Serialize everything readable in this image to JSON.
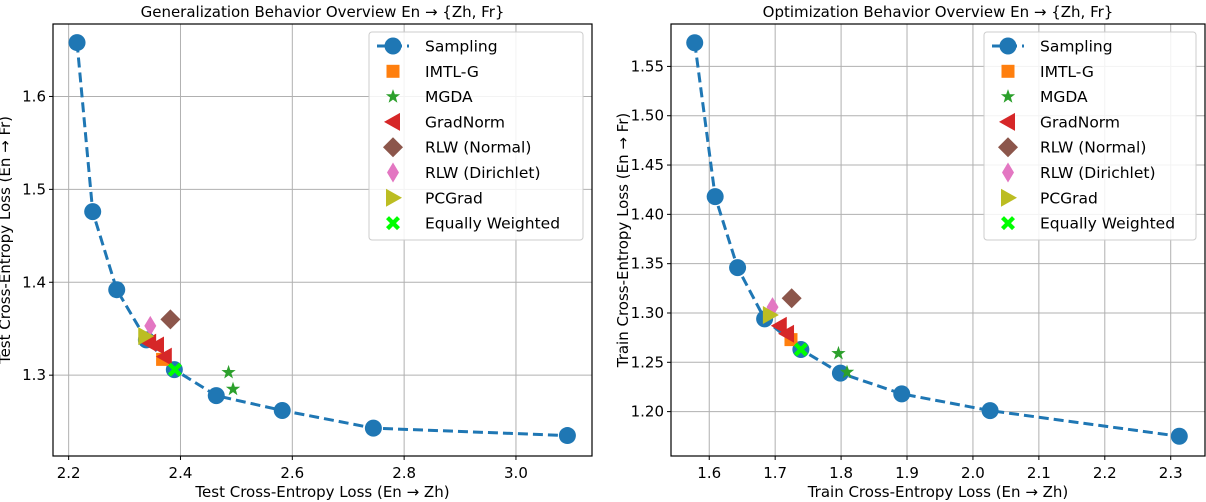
{
  "colors": {
    "Sampling": "#1f77b4",
    "IMTL-G": "#ff7f0e",
    "MGDA": "#2ca02c",
    "GradNorm": "#d62728",
    "RLW (Normal)": "#8c564b",
    "RLW (Dirichlet)": "#e377c2",
    "PCGrad": "#bcbd22",
    "Equally Weighted": "#00ff00"
  },
  "chart_data": [
    {
      "type": "scatter",
      "title": "Generalization Behavior Overview En → {Zh, Fr}",
      "xlabel": "Test Cross-Entropy Loss (En → Zh)",
      "ylabel": "Test Cross-Entropy Loss (En → Fr)",
      "xlim": [
        2.172,
        3.136
      ],
      "ylim": [
        1.213,
        1.678
      ],
      "xticks": [
        "2.2",
        "2.4",
        "2.6",
        "2.8",
        "3.0"
      ],
      "yticks": [
        "1.3",
        "1.4",
        "1.5",
        "1.6"
      ],
      "grid": true,
      "legend_position": "top-right",
      "series": [
        {
          "name": "Sampling",
          "marker": "circle",
          "line": "dashed",
          "points": [
            [
              2.215,
              1.658
            ],
            [
              2.243,
              1.476
            ],
            [
              2.286,
              1.392
            ],
            [
              2.339,
              1.338
            ],
            [
              2.389,
              1.306
            ],
            [
              2.464,
              1.278
            ],
            [
              2.582,
              1.262
            ],
            [
              2.745,
              1.243
            ],
            [
              3.092,
              1.235
            ]
          ]
        },
        {
          "name": "IMTL-G",
          "marker": "square",
          "points": [
            [
              2.368,
              1.317
            ]
          ]
        },
        {
          "name": "MGDA",
          "marker": "star",
          "points": [
            [
              2.486,
              1.303
            ],
            [
              2.494,
              1.285
            ]
          ]
        },
        {
          "name": "GradNorm",
          "marker": "triangle-left",
          "points": [
            [
              2.344,
              1.335
            ],
            [
              2.358,
              1.332
            ],
            [
              2.372,
              1.32
            ]
          ]
        },
        {
          "name": "RLW (Normal)",
          "marker": "diamond",
          "points": [
            [
              2.382,
              1.36
            ]
          ]
        },
        {
          "name": "RLW (Dirichlet)",
          "marker": "thin-diamond",
          "points": [
            [
              2.346,
              1.353
            ]
          ]
        },
        {
          "name": "PCGrad",
          "marker": "triangle-right",
          "points": [
            [
              2.337,
              1.342
            ]
          ]
        },
        {
          "name": "Equally Weighted",
          "marker": "x-filled",
          "points": [
            [
              2.39,
              1.306
            ]
          ]
        }
      ]
    },
    {
      "type": "scatter",
      "title": "Optimization Behavior Overview En → {Zh, Fr}",
      "xlabel": "Train Cross-Entropy Loss (En → Zh)",
      "ylabel": "Train Cross-Entropy Loss (En → Fr)",
      "xlim": [
        1.542,
        2.352
      ],
      "ylim": [
        1.155,
        1.593
      ],
      "xticks": [
        "1.6",
        "1.7",
        "1.8",
        "1.9",
        "2.0",
        "2.1",
        "2.2",
        "2.3"
      ],
      "yticks": [
        "1.20",
        "1.25",
        "1.30",
        "1.35",
        "1.40",
        "1.45",
        "1.50",
        "1.55"
      ],
      "grid": true,
      "legend_position": "top-right",
      "series": [
        {
          "name": "Sampling",
          "marker": "circle",
          "line": "dashed",
          "points": [
            [
              1.578,
              1.574
            ],
            [
              1.609,
              1.418
            ],
            [
              1.643,
              1.346
            ],
            [
              1.684,
              1.294
            ],
            [
              1.739,
              1.263
            ],
            [
              1.799,
              1.239
            ],
            [
              1.892,
              1.218
            ],
            [
              2.026,
              1.201
            ],
            [
              2.313,
              1.175
            ]
          ]
        },
        {
          "name": "IMTL-G",
          "marker": "square",
          "points": [
            [
              1.724,
              1.273
            ]
          ]
        },
        {
          "name": "MGDA",
          "marker": "star",
          "points": [
            [
              1.796,
              1.259
            ],
            [
              1.809,
              1.24
            ]
          ]
        },
        {
          "name": "GradNorm",
          "marker": "triangle-left",
          "points": [
            [
              1.707,
              1.287
            ],
            [
              1.718,
              1.279
            ]
          ]
        },
        {
          "name": "RLW (Normal)",
          "marker": "diamond",
          "points": [
            [
              1.725,
              1.315
            ]
          ]
        },
        {
          "name": "RLW (Dirichlet)",
          "marker": "thin-diamond",
          "points": [
            [
              1.696,
              1.306
            ]
          ]
        },
        {
          "name": "PCGrad",
          "marker": "triangle-right",
          "points": [
            [
              1.692,
              1.298
            ]
          ]
        },
        {
          "name": "Equally Weighted",
          "marker": "x-filled",
          "points": [
            [
              1.739,
              1.263
            ]
          ]
        }
      ]
    }
  ]
}
